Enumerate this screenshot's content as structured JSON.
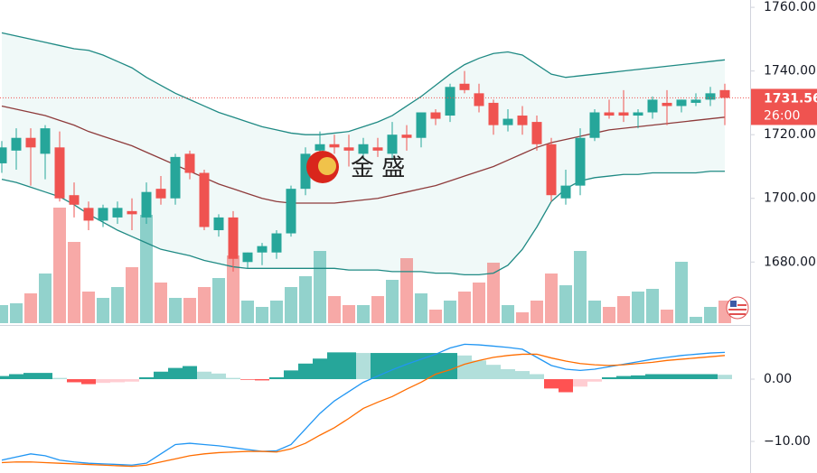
{
  "chart_data": [
    {
      "type": "candlestick",
      "watermark": "金 盛",
      "price_label": "1731.56",
      "countdown": "26:00",
      "ylim": [
        1660.8,
        1762.3
      ],
      "yticks": [
        {
          "value": 1760,
          "label": "1760.00"
        },
        {
          "value": 1740,
          "label": "1740.00"
        },
        {
          "value": 1720,
          "label": "1720.00"
        },
        {
          "value": 1700,
          "label": "1700.00"
        },
        {
          "value": 1680,
          "label": "1680.00"
        }
      ],
      "up_color": "#26a69a",
      "down_color": "#ef5350",
      "ohlc": [
        [
          1711,
          1718,
          1708,
          1716
        ],
        [
          1715,
          1722,
          1709,
          1719
        ],
        [
          1719,
          1722,
          1704,
          1716
        ],
        [
          1714,
          1723,
          1706,
          1722
        ],
        [
          1716,
          1721,
          1699,
          1700
        ],
        [
          1701,
          1705,
          1694,
          1698
        ],
        [
          1697,
          1699,
          1690,
          1693
        ],
        [
          1693,
          1698,
          1691,
          1697
        ],
        [
          1694,
          1699,
          1692,
          1697
        ],
        [
          1696,
          1700,
          1690,
          1695
        ],
        [
          1694,
          1705,
          1692,
          1702
        ],
        [
          1703,
          1707,
          1698,
          1700
        ],
        [
          1700,
          1714,
          1698,
          1713
        ],
        [
          1714,
          1715,
          1706,
          1708
        ],
        [
          1708,
          1709,
          1690,
          1691
        ],
        [
          1690,
          1695,
          1688,
          1694
        ],
        [
          1694,
          1696,
          1677,
          1681
        ],
        [
          1680,
          1683,
          1678,
          1683
        ],
        [
          1683,
          1686,
          1679,
          1685
        ],
        [
          1683,
          1690,
          1681,
          1689
        ],
        [
          1689,
          1704,
          1688,
          1703
        ],
        [
          1703,
          1716,
          1701,
          1714
        ],
        [
          1715,
          1721,
          1712,
          1717
        ],
        [
          1717,
          1720,
          1714,
          1716
        ],
        [
          1716,
          1720,
          1710,
          1715
        ],
        [
          1714,
          1719,
          1712,
          1717
        ],
        [
          1716,
          1719,
          1713,
          1715
        ],
        [
          1714,
          1724,
          1712,
          1720
        ],
        [
          1720,
          1723,
          1715,
          1719
        ],
        [
          1719,
          1727,
          1716,
          1727
        ],
        [
          1727,
          1728,
          1723,
          1725
        ],
        [
          1726,
          1736,
          1724,
          1735
        ],
        [
          1736,
          1740,
          1733,
          1734
        ],
        [
          1733,
          1736,
          1727,
          1729
        ],
        [
          1730,
          1731,
          1720,
          1723
        ],
        [
          1723,
          1728,
          1721,
          1725
        ],
        [
          1726,
          1729,
          1720,
          1723
        ],
        [
          1724,
          1726,
          1715,
          1717
        ],
        [
          1717,
          1719,
          1699,
          1701
        ],
        [
          1700,
          1709,
          1698,
          1704
        ],
        [
          1704,
          1722,
          1701,
          1719
        ],
        [
          1719,
          1728,
          1718,
          1727
        ],
        [
          1727,
          1731,
          1725,
          1726
        ],
        [
          1727,
          1734,
          1724,
          1726
        ],
        [
          1726,
          1728,
          1722,
          1727
        ],
        [
          1727,
          1732,
          1725,
          1731
        ],
        [
          1730,
          1734,
          1723,
          1729
        ],
        [
          1729,
          1731,
          1727,
          1731
        ],
        [
          1730,
          1733,
          1729,
          1731
        ],
        [
          1731,
          1735,
          1729,
          1733
        ],
        [
          1734,
          1736,
          1723,
          1731.56
        ]
      ],
      "volume": [
        20,
        22,
        33,
        55,
        128,
        90,
        35,
        28,
        40,
        62,
        120,
        45,
        28,
        28,
        40,
        50,
        75,
        25,
        18,
        25,
        40,
        52,
        80,
        30,
        20,
        20,
        30,
        48,
        72,
        33,
        15,
        25,
        35,
        45,
        67,
        20,
        12,
        25,
        55,
        42,
        80,
        25,
        18,
        30,
        35,
        38,
        15,
        68,
        7,
        18,
        25
      ],
      "volume_lim": [
        0,
        358
      ],
      "bands": {
        "outer_color": "#1f8a84",
        "middle_color": "#8e3b3b",
        "fill": "rgba(38,166,154,0.07)",
        "upper": [
          1752,
          1751,
          1750,
          1749,
          1748,
          1747,
          1746.5,
          1745,
          1743,
          1741,
          1738,
          1735.5,
          1733,
          1731,
          1729,
          1727,
          1725.5,
          1724,
          1722.5,
          1721.5,
          1720.5,
          1720,
          1720,
          1720.5,
          1721,
          1722.5,
          1724,
          1726,
          1729,
          1732,
          1735.5,
          1739,
          1742,
          1744,
          1745.5,
          1746,
          1745,
          1742,
          1739,
          1738,
          1738.5,
          1739,
          1739.5,
          1740,
          1740.5,
          1741,
          1741.5,
          1742,
          1742.5,
          1743,
          1743.5
        ],
        "middle": [
          1729,
          1728,
          1727,
          1726,
          1724.5,
          1723,
          1721,
          1719.5,
          1718,
          1716.5,
          1714.5,
          1712.5,
          1710.5,
          1708.5,
          1706.5,
          1704.5,
          1703,
          1701.5,
          1700,
          1699,
          1698.5,
          1698.5,
          1698.5,
          1698.5,
          1699,
          1699.5,
          1700,
          1701,
          1702,
          1703,
          1704,
          1705.5,
          1707,
          1708.5,
          1710,
          1712,
          1714,
          1716,
          1717.5,
          1718.5,
          1719.5,
          1720.5,
          1721.5,
          1722,
          1722.5,
          1723,
          1723.5,
          1724,
          1724.5,
          1725,
          1725.5
        ],
        "lower": [
          1706,
          1705,
          1703.5,
          1702,
          1700.5,
          1698,
          1695,
          1692.5,
          1690,
          1688,
          1686,
          1684,
          1683,
          1682,
          1680.5,
          1679.5,
          1678.5,
          1678,
          1678,
          1678,
          1678,
          1678,
          1678,
          1678,
          1677.5,
          1677.5,
          1677.5,
          1677,
          1677,
          1677,
          1676.5,
          1676.5,
          1676,
          1676,
          1676.5,
          1679,
          1684,
          1691,
          1699,
          1703,
          1705.5,
          1706.5,
          1707,
          1707.5,
          1707.5,
          1708,
          1708,
          1708,
          1708,
          1708.5,
          1708.5
        ]
      }
    },
    {
      "type": "macd",
      "ylim": [
        -15.07,
        8.41
      ],
      "yticks": [
        {
          "value": 0,
          "label": "0.00"
        },
        {
          "value": -10,
          "label": "−10.00"
        }
      ],
      "histogram": [
        0.5,
        0.8,
        1,
        1,
        0.2,
        -0.5,
        -0.8,
        -0.6,
        -0.5,
        -0.4,
        0.3,
        1.2,
        1.8,
        2.1,
        1.2,
        0.9,
        0.2,
        -0.1,
        -0.2,
        0.3,
        1.4,
        2.5,
        3.3,
        4.3,
        4.3,
        4.2,
        4.2,
        4.2,
        4.2,
        4.2,
        4.2,
        4.2,
        3.8,
        3.0,
        2.3,
        1.6,
        1.3,
        0.8,
        -1.5,
        -2.1,
        -1.2,
        -0.4,
        0.3,
        0.5,
        0.6,
        0.8,
        0.8,
        0.8,
        0.8,
        0.8,
        0.7
      ],
      "series": [
        {
          "color": "#2196f3",
          "values": [
            -13,
            -12.5,
            -12,
            -12.3,
            -13,
            -13.3,
            -13.5,
            -13.6,
            -13.7,
            -13.8,
            -13.5,
            -12,
            -10.5,
            -10.3,
            -10.5,
            -10.7,
            -11,
            -11.3,
            -11.6,
            -11.5,
            -10.5,
            -8,
            -5.5,
            -3.5,
            -2,
            -0.5,
            0.5,
            1.5,
            2.4,
            3.2,
            4,
            5,
            5.6,
            5.5,
            5.3,
            5.1,
            4.8,
            3.5,
            2.2,
            1.6,
            1.4,
            1.6,
            2,
            2.4,
            2.8,
            3.2,
            3.5,
            3.8,
            4,
            4.2,
            4.3
          ]
        },
        {
          "color": "#ff6d00",
          "values": [
            -13.4,
            -13.3,
            -13.3,
            -13.4,
            -13.5,
            -13.6,
            -13.7,
            -13.8,
            -13.9,
            -14,
            -13.8,
            -13.3,
            -12.8,
            -12.3,
            -12,
            -11.8,
            -11.7,
            -11.6,
            -11.6,
            -11.7,
            -11.2,
            -10.3,
            -9,
            -7.8,
            -6.3,
            -4.7,
            -3.7,
            -2.8,
            -1.6,
            -0.5,
            0.8,
            1.5,
            2.4,
            3.0,
            3.5,
            3.8,
            4,
            4,
            3.4,
            2.9,
            2.5,
            2.3,
            2.2,
            2.3,
            2.5,
            2.7,
            3,
            3.2,
            3.4,
            3.6,
            3.8
          ]
        }
      ]
    }
  ]
}
